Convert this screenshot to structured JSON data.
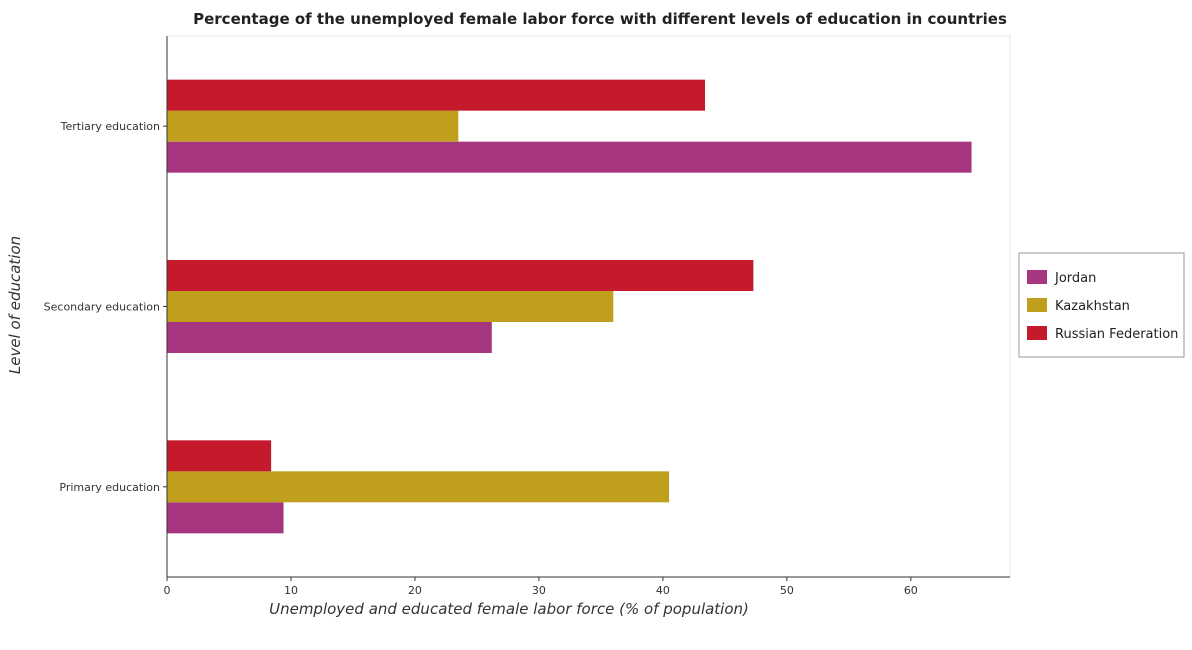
{
  "chart_data": {
    "type": "bar",
    "orientation": "horizontal",
    "title": "Percentage of the unemployed female labor force with different levels of education in countries",
    "xlabel": "Unemployed and educated female labor force (% of population)",
    "ylabel": "Level of education",
    "categories": [
      "Primary education",
      "Secondary education",
      "Tertiary education"
    ],
    "series": [
      {
        "name": "Jordan",
        "color": "#a5367f",
        "values": [
          9.4,
          26.2,
          64.9
        ]
      },
      {
        "name": "Kazakhstan",
        "color": "#bf9f1c",
        "values": [
          40.5,
          36.0,
          23.5
        ]
      },
      {
        "name": "Russian Federation",
        "color": "#c41a2c",
        "values": [
          8.4,
          47.3,
          43.4
        ]
      }
    ],
    "xlim": [
      0,
      68
    ],
    "xticks": [
      0,
      10,
      20,
      30,
      40,
      50,
      60
    ],
    "grid": false,
    "legend_position": "right"
  }
}
